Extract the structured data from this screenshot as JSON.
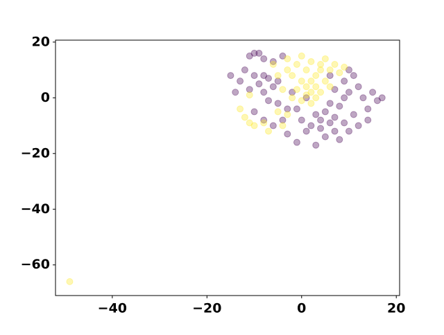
{
  "chart_data": {
    "type": "scatter",
    "xlim": [
      -52,
      20.7
    ],
    "ylim": [
      -71,
      20.7
    ],
    "xticks": [
      {
        "value": -40,
        "label": "−40"
      },
      {
        "value": -20,
        "label": "−20"
      },
      0,
      20
    ],
    "yticks": [
      {
        "value": -60,
        "label": "−60"
      },
      {
        "value": -40,
        "label": "−40"
      },
      {
        "value": -20,
        "label": "−20"
      },
      0,
      20
    ],
    "alpha": 0.35,
    "series": [
      {
        "color": "#440154",
        "x": [
          -10,
          -9,
          -11,
          -8,
          -6,
          -4,
          -12,
          -10,
          -8,
          -7,
          -9,
          -6,
          -5,
          -11,
          -13,
          -14,
          -8,
          -7,
          -5,
          -3,
          -10,
          -8,
          -6,
          -3,
          -1,
          1,
          2,
          3,
          4,
          5,
          6,
          7,
          5,
          3,
          8,
          10,
          12,
          14,
          8,
          9,
          10,
          7,
          9,
          11,
          12,
          13,
          15,
          16,
          17,
          14,
          11,
          9,
          6,
          0,
          -1,
          1,
          -2,
          6,
          10,
          -15,
          -4,
          4,
          7
        ],
        "y": [
          16,
          16,
          15,
          14,
          13,
          15,
          10,
          8,
          8,
          7,
          5,
          4,
          6,
          3,
          6,
          2,
          2,
          -1,
          -2,
          -4,
          -5,
          -8,
          -10,
          -13,
          -16,
          -12,
          -10,
          -6,
          -8,
          -5,
          -9,
          -12,
          -14,
          -17,
          -15,
          -12,
          -10,
          -8,
          -3,
          0,
          2,
          3,
          6,
          8,
          4,
          0,
          2,
          -1,
          0,
          -4,
          -6,
          -9,
          -2,
          -8,
          -4,
          0,
          2,
          8,
          10,
          8,
          -8,
          -11,
          -7
        ]
      },
      {
        "color": "#fde725",
        "x": [
          -12,
          -11,
          -10,
          -8,
          -13,
          -11,
          -4,
          -3,
          -2,
          -1,
          0,
          1,
          2,
          3,
          4,
          2,
          1,
          0,
          -1,
          3,
          5,
          6,
          4,
          2,
          5,
          7,
          8,
          9,
          -3,
          -5,
          -4,
          0,
          2,
          1,
          3,
          -2,
          -6,
          -3,
          4,
          6,
          -49,
          -7,
          -5
        ],
        "y": [
          -7,
          -9,
          -10,
          -9,
          -4,
          1,
          -10,
          -6,
          8,
          12,
          15,
          10,
          6,
          4,
          2,
          2,
          4,
          6,
          3,
          8,
          6,
          4,
          10,
          13,
          14,
          12,
          9,
          11,
          10,
          8,
          3,
          -1,
          -2,
          1,
          0,
          0,
          12,
          14,
          12,
          10,
          -66,
          -12,
          -5
        ]
      }
    ]
  }
}
